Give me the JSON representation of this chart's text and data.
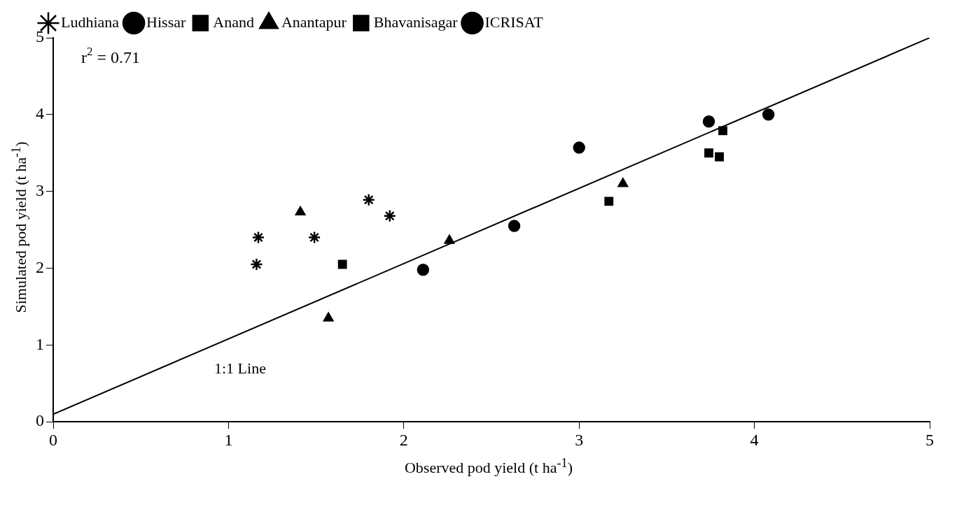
{
  "chart_data": {
    "type": "scatter",
    "xlabel": "Observed pod yield (t ha$^{-1}$)",
    "ylabel": "Simulated pod yield (t ha$^{-1}$)",
    "xlim": [
      0,
      5
    ],
    "xticks": [
      0,
      1,
      2,
      3,
      4,
      5
    ],
    "ylim": [
      0,
      5
    ],
    "yticks": [
      0,
      1,
      2,
      3,
      4,
      5
    ],
    "grid": false,
    "legend": "top left",
    "annotations": [
      "r$^{2}$ = 0.71",
      "1:1 Line"
    ],
    "series": [
      {
        "name": "Ludhiana",
        "color": "#000000",
        "marker": "cross",
        "x": [
          1.17,
          1.16,
          1.49,
          1.8,
          1.92
        ],
        "values": [
          2.4,
          2.05,
          2.4,
          2.89,
          2.68
        ]
      },
      {
        "name": "Hissar",
        "color": "#000000",
        "marker": "circle",
        "x": [
          3.74,
          4.08
        ],
        "values": [
          3.91,
          4.0
        ]
      },
      {
        "name": "Anand",
        "color": "#000000",
        "marker": "square",
        "x": [
          1.65,
          3.17,
          3.82,
          3.8
        ],
        "values": [
          2.05,
          2.87,
          3.79,
          3.45
        ]
      },
      {
        "name": "Anantapur",
        "color": "#000000",
        "marker": "triangle",
        "x": [
          1.41,
          1.57,
          2.26,
          3.25
        ],
        "values": [
          2.73,
          1.35,
          2.36,
          3.1
        ]
      },
      {
        "name": "Bhavanisagar",
        "color": "#000000",
        "marker": "square",
        "x": [
          3.74
        ],
        "values": [
          3.5
        ]
      },
      {
        "name": "ICRISAT",
        "color": "#000000",
        "marker": "circle",
        "x": [
          2.11,
          2.63,
          3.0
        ],
        "values": [
          1.98,
          2.55,
          3.57
        ]
      },
      {
        "type": "line",
        "color": "#000000",
        "marker": "none",
        "x": [
          0,
          5
        ],
        "values": [
          0.1,
          5
        ]
      }
    ]
  }
}
